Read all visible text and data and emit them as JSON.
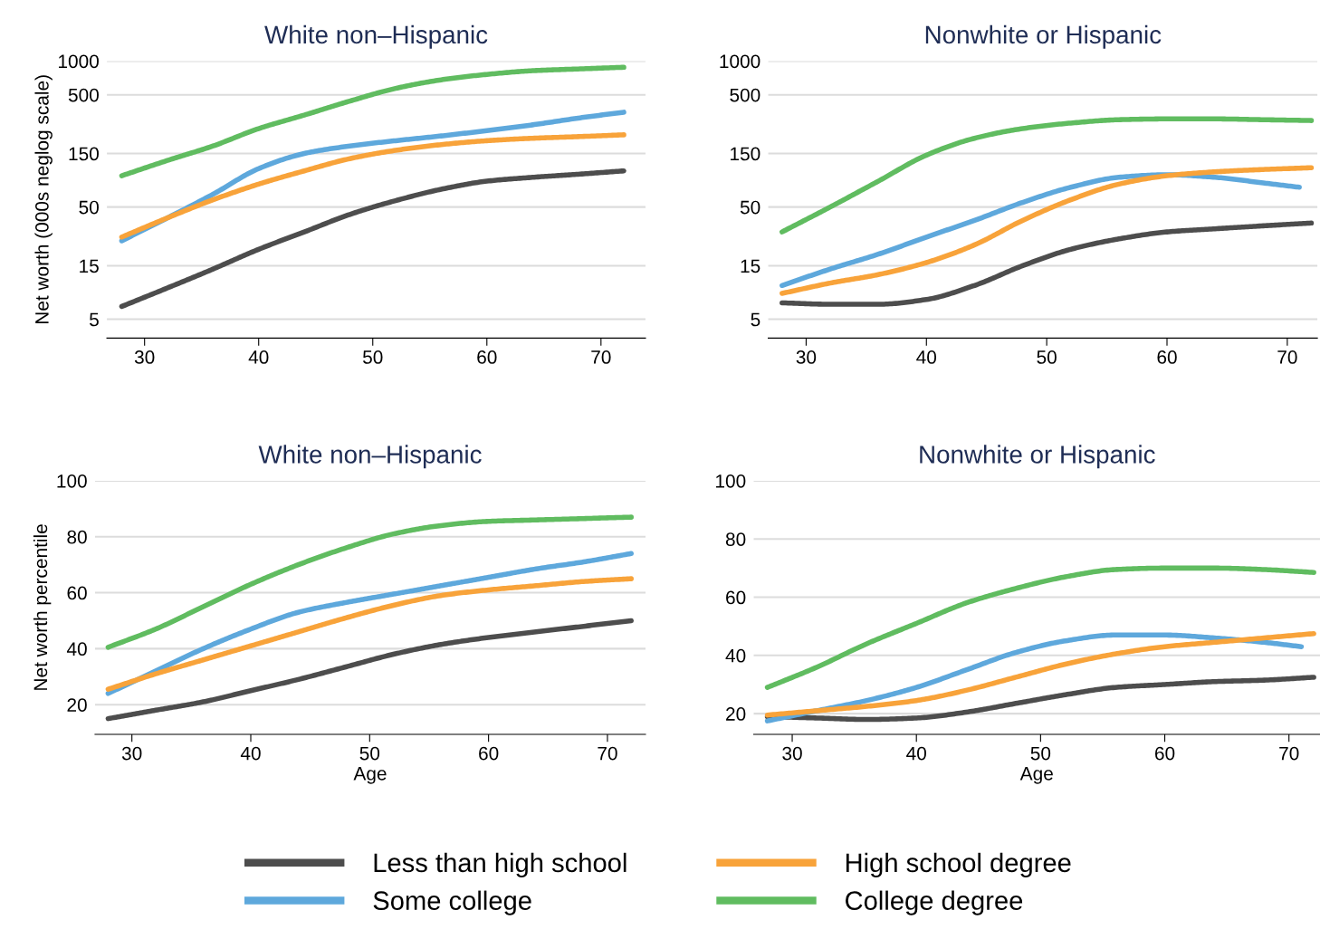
{
  "chart_data": [
    {
      "type": "line",
      "title": "White non–Hispanic",
      "ylabel": "Net worth (000s neglog scale)",
      "log": "y",
      "grid": "y",
      "legend": "bottom",
      "xlim": [
        26.7,
        73.9
      ],
      "xticks": [
        30,
        40,
        50,
        60,
        70
      ],
      "ylim": [
        3.4,
        1000
      ],
      "yticks": [
        5,
        15,
        50,
        150,
        500,
        1000
      ],
      "x": [
        28,
        32,
        36,
        40,
        44,
        48,
        52,
        56,
        60,
        64,
        68,
        72
      ],
      "series": [
        {
          "name": "Less than high school",
          "color": "#4d4d4d",
          "values": [
            6.5,
            9.5,
            14,
            21,
            30,
            43,
            57,
            72,
            85,
            92,
            98,
            105
          ]
        },
        {
          "name": "Some college",
          "color": "#5ea8dc",
          "values": [
            25,
            40,
            65,
            110,
            150,
            175,
            195,
            215,
            240,
            270,
            310,
            350
          ]
        },
        {
          "name": "High school degree",
          "color": "#f8a33a",
          "values": [
            27,
            40,
            58,
            80,
            105,
            135,
            160,
            180,
            195,
            205,
            212,
            220
          ]
        },
        {
          "name": "College degree",
          "color": "#60bc60",
          "values": [
            95,
            130,
            175,
            250,
            330,
            440,
            570,
            680,
            760,
            820,
            850,
            880
          ]
        }
      ]
    },
    {
      "type": "line",
      "title": "Nonwhite or Hispanic",
      "log": "y",
      "grid": "y",
      "xlim": [
        26.85,
        72.5
      ],
      "xticks": [
        30,
        40,
        50,
        60,
        70
      ],
      "ylim": [
        3.4,
        1000
      ],
      "yticks": [
        5,
        15,
        50,
        150,
        500,
        1000
      ],
      "x": [
        28,
        32,
        36,
        40,
        44,
        48,
        52,
        56,
        60,
        64,
        68,
        72
      ],
      "series": [
        {
          "color": "#4d4d4d",
          "values": [
            7,
            6.8,
            6.8,
            7.5,
            10,
            15,
            21,
            26,
            30,
            32,
            34,
            36
          ]
        },
        {
          "color": "#5ea8dc",
          "x": [
            28,
            32,
            36,
            40,
            44,
            48,
            52,
            56,
            60,
            64,
            68,
            71
          ],
          "values": [
            10,
            14,
            19,
            27,
            38,
            55,
            75,
            92,
            97,
            92,
            82,
            75
          ]
        },
        {
          "color": "#f8a33a",
          "values": [
            8.5,
            10.5,
            12.5,
            16,
            23,
            38,
            58,
            80,
            95,
            103,
            108,
            112
          ]
        },
        {
          "color": "#60bc60",
          "values": [
            30,
            50,
            85,
            145,
            205,
            250,
            280,
            300,
            305,
            305,
            300,
            295
          ]
        }
      ]
    },
    {
      "type": "line",
      "title": "White non–Hispanic",
      "ylabel": "Net worth percentile",
      "xlabel": "Age",
      "grid": "y",
      "xlim": [
        26.9,
        73.2
      ],
      "xticks": [
        30,
        40,
        50,
        60,
        70
      ],
      "ylim": [
        9.4,
        100
      ],
      "yticks": [
        20,
        40,
        60,
        80,
        100
      ],
      "x": [
        28,
        32,
        36,
        40,
        44,
        48,
        52,
        56,
        60,
        64,
        68,
        72
      ],
      "series": [
        {
          "color": "#4d4d4d",
          "values": [
            15,
            18,
            21,
            25,
            29,
            33.5,
            38,
            41.5,
            44,
            46,
            48,
            50
          ]
        },
        {
          "color": "#5ea8dc",
          "values": [
            24,
            32,
            40,
            47,
            53,
            56.5,
            59.5,
            62.5,
            65.5,
            68.5,
            71,
            74
          ]
        },
        {
          "color": "#f8a33a",
          "values": [
            25.5,
            31,
            36,
            41,
            46,
            51,
            55.5,
            59,
            61,
            62.5,
            64,
            65
          ]
        },
        {
          "color": "#60bc60",
          "values": [
            40.5,
            47,
            55,
            63,
            70,
            76,
            81,
            84,
            85.5,
            86,
            86.5,
            87
          ]
        }
      ]
    },
    {
      "type": "line",
      "title": "Nonwhite or Hispanic",
      "xlabel": "Age",
      "grid": "y",
      "xlim": [
        26.9,
        72.5
      ],
      "xticks": [
        30,
        40,
        50,
        60,
        70
      ],
      "ylim": [
        12.9,
        100
      ],
      "yticks": [
        20,
        40,
        60,
        80,
        100
      ],
      "x": [
        28,
        32,
        36,
        40,
        44,
        48,
        52,
        56,
        60,
        64,
        68,
        72
      ],
      "series": [
        {
          "color": "#4d4d4d",
          "values": [
            19,
            18.5,
            18,
            18.5,
            20.5,
            23.5,
            26.5,
            29,
            30,
            31,
            31.5,
            32.5
          ]
        },
        {
          "color": "#5ea8dc",
          "x": [
            28,
            32,
            36,
            40,
            44,
            48,
            52,
            56,
            60,
            64,
            68,
            71
          ],
          "values": [
            17.5,
            21,
            24.5,
            29,
            35,
            41,
            45,
            47,
            47,
            46,
            44.5,
            43
          ]
        },
        {
          "color": "#f8a33a",
          "values": [
            19.5,
            21,
            22.5,
            24.5,
            28,
            32.5,
            37,
            40.5,
            43,
            44.5,
            46,
            47.5
          ]
        },
        {
          "color": "#60bc60",
          "values": [
            29,
            36,
            44,
            51,
            58,
            63,
            67,
            69.5,
            70,
            70,
            69.5,
            68.5
          ]
        }
      ]
    }
  ]
}
